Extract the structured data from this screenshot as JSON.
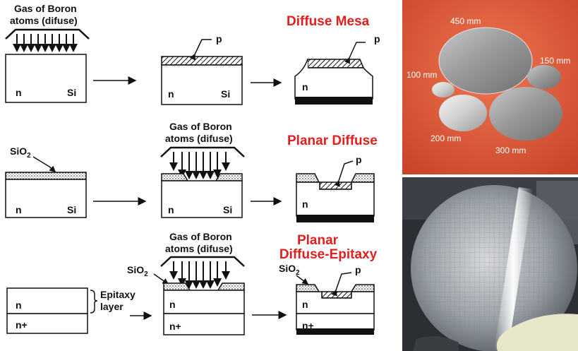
{
  "titles": {
    "mesa": "Diffuse Mesa",
    "planar": "Planar Diffuse",
    "epi_line1": "Planar",
    "epi_line2": "Diffuse-Epitaxy"
  },
  "labels": {
    "gas_line1": "Gas of Boron",
    "gas_line2": "atoms (difuse)",
    "gas_line2_alt": "atoms (difuse)",
    "n": "n",
    "si": "Si",
    "p": "p",
    "sio2": "SiO",
    "sio2_sub": "2",
    "nplus": "n+",
    "epitaxy_line1": "Epitaxy",
    "epitaxy_line2": "layer"
  },
  "wafer_sizes": [
    "450 mm",
    "150 mm",
    "100 mm",
    "200 mm",
    "300 mm"
  ],
  "colors": {
    "title_red": "#e0201e",
    "wafer_bg": "#d95a3a"
  }
}
